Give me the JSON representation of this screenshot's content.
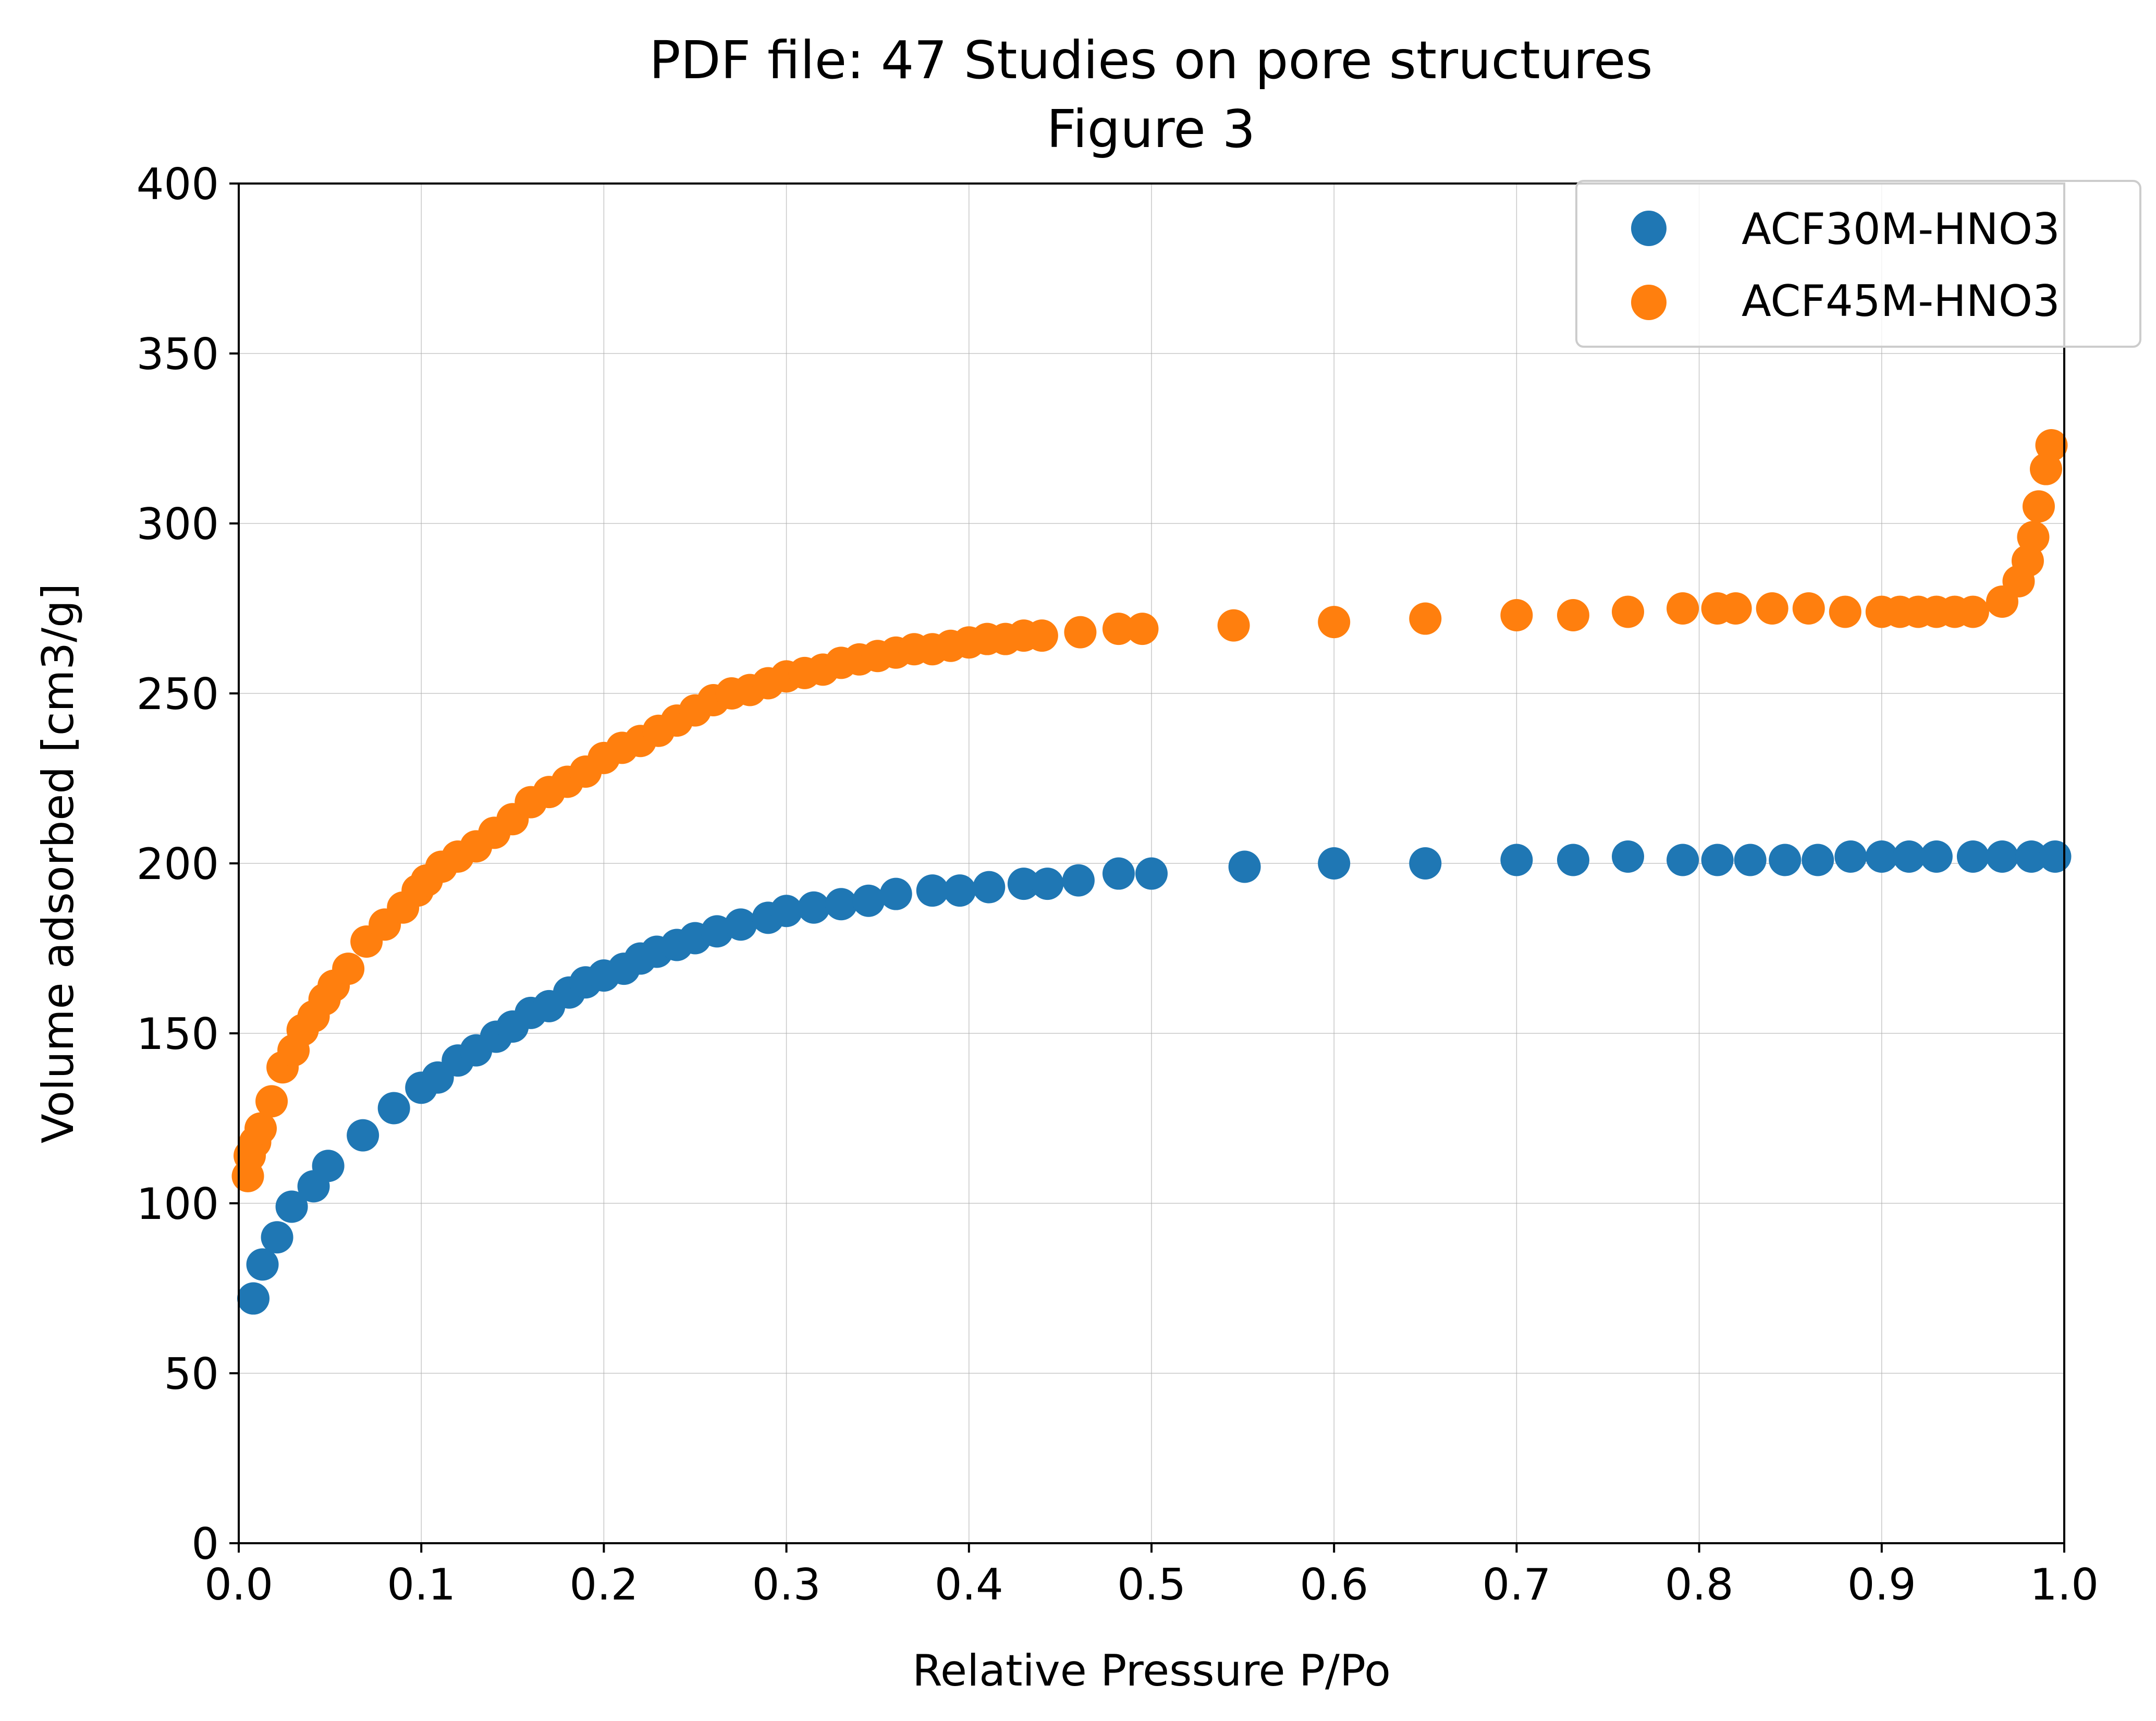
{
  "chart_data": {
    "type": "scatter",
    "title": "PDF file: 47 Studies on pore structures",
    "subtitle": "Figure 3",
    "xlabel": "Relative Pressure P/Po",
    "ylabel": "Volume adsorbed [cm3/g]",
    "xlim": [
      0.0,
      1.0
    ],
    "ylim": [
      0,
      400
    ],
    "xticks": [
      "0.0",
      "0.1",
      "0.2",
      "0.3",
      "0.4",
      "0.5",
      "0.6",
      "0.7",
      "0.8",
      "0.9",
      "1.0"
    ],
    "yticks": [
      "0",
      "50",
      "100",
      "150",
      "200",
      "250",
      "300",
      "350",
      "400"
    ],
    "grid": true,
    "legend_position": "top-right",
    "series": [
      {
        "name": "ACF30M-HNO3",
        "color": "#1f77b4",
        "points": [
          [
            0.008,
            72
          ],
          [
            0.013,
            82
          ],
          [
            0.021,
            90
          ],
          [
            0.029,
            99
          ],
          [
            0.041,
            105
          ],
          [
            0.049,
            111
          ],
          [
            0.068,
            120
          ],
          [
            0.085,
            128
          ],
          [
            0.1,
            134
          ],
          [
            0.109,
            137
          ],
          [
            0.12,
            142
          ],
          [
            0.13,
            145
          ],
          [
            0.141,
            149
          ],
          [
            0.15,
            152
          ],
          [
            0.16,
            156
          ],
          [
            0.17,
            158
          ],
          [
            0.181,
            162
          ],
          [
            0.19,
            165
          ],
          [
            0.2,
            167
          ],
          [
            0.211,
            169
          ],
          [
            0.22,
            172
          ],
          [
            0.229,
            174
          ],
          [
            0.24,
            176
          ],
          [
            0.25,
            178
          ],
          [
            0.262,
            180
          ],
          [
            0.275,
            182
          ],
          [
            0.29,
            184
          ],
          [
            0.3,
            186
          ],
          [
            0.315,
            187
          ],
          [
            0.33,
            188
          ],
          [
            0.345,
            189
          ],
          [
            0.36,
            191
          ],
          [
            0.38,
            192
          ],
          [
            0.395,
            192
          ],
          [
            0.411,
            193
          ],
          [
            0.43,
            194
          ],
          [
            0.443,
            194
          ],
          [
            0.46,
            195
          ],
          [
            0.482,
            197
          ],
          [
            0.5,
            197
          ],
          [
            0.551,
            199
          ],
          [
            0.6,
            200
          ],
          [
            0.65,
            200
          ],
          [
            0.7,
            201
          ],
          [
            0.731,
            201
          ],
          [
            0.761,
            202
          ],
          [
            0.791,
            201
          ],
          [
            0.81,
            201
          ],
          [
            0.828,
            201
          ],
          [
            0.847,
            201
          ],
          [
            0.865,
            201
          ],
          [
            0.883,
            202
          ],
          [
            0.9,
            202
          ],
          [
            0.915,
            202
          ],
          [
            0.93,
            202
          ],
          [
            0.95,
            202
          ],
          [
            0.966,
            202
          ],
          [
            0.982,
            202
          ],
          [
            0.995,
            202
          ]
        ]
      },
      {
        "name": "ACF45M-HNO3",
        "color": "#ff7f0e",
        "points": [
          [
            0.005,
            108
          ],
          [
            0.006,
            114
          ],
          [
            0.009,
            118
          ],
          [
            0.012,
            122
          ],
          [
            0.018,
            130
          ],
          [
            0.024,
            140
          ],
          [
            0.03,
            145
          ],
          [
            0.035,
            151
          ],
          [
            0.041,
            155
          ],
          [
            0.047,
            160
          ],
          [
            0.052,
            164
          ],
          [
            0.06,
            169
          ],
          [
            0.07,
            177
          ],
          [
            0.08,
            182
          ],
          [
            0.09,
            187
          ],
          [
            0.098,
            192
          ],
          [
            0.103,
            195
          ],
          [
            0.111,
            199
          ],
          [
            0.12,
            202
          ],
          [
            0.13,
            205
          ],
          [
            0.14,
            209
          ],
          [
            0.15,
            213
          ],
          [
            0.16,
            218
          ],
          [
            0.17,
            221
          ],
          [
            0.18,
            224
          ],
          [
            0.19,
            227
          ],
          [
            0.2,
            231
          ],
          [
            0.21,
            234
          ],
          [
            0.22,
            236
          ],
          [
            0.23,
            239
          ],
          [
            0.24,
            242
          ],
          [
            0.25,
            245
          ],
          [
            0.26,
            248
          ],
          [
            0.27,
            250
          ],
          [
            0.28,
            251
          ],
          [
            0.29,
            253
          ],
          [
            0.3,
            255
          ],
          [
            0.31,
            256
          ],
          [
            0.32,
            257
          ],
          [
            0.33,
            259
          ],
          [
            0.34,
            260
          ],
          [
            0.35,
            261
          ],
          [
            0.36,
            262
          ],
          [
            0.37,
            263
          ],
          [
            0.38,
            263
          ],
          [
            0.39,
            264
          ],
          [
            0.4,
            265
          ],
          [
            0.41,
            266
          ],
          [
            0.42,
            266
          ],
          [
            0.43,
            267
          ],
          [
            0.44,
            267
          ],
          [
            0.461,
            268
          ],
          [
            0.482,
            269
          ],
          [
            0.495,
            269
          ],
          [
            0.545,
            270
          ],
          [
            0.6,
            271
          ],
          [
            0.65,
            272
          ],
          [
            0.7,
            273
          ],
          [
            0.731,
            273
          ],
          [
            0.761,
            274
          ],
          [
            0.791,
            275
          ],
          [
            0.81,
            275
          ],
          [
            0.82,
            275
          ],
          [
            0.84,
            275
          ],
          [
            0.86,
            275
          ],
          [
            0.88,
            274
          ],
          [
            0.9,
            274
          ],
          [
            0.91,
            274
          ],
          [
            0.92,
            274
          ],
          [
            0.93,
            274
          ],
          [
            0.94,
            274
          ],
          [
            0.95,
            274
          ],
          [
            0.966,
            277
          ],
          [
            0.975,
            283
          ],
          [
            0.98,
            289
          ],
          [
            0.983,
            296
          ],
          [
            0.986,
            305
          ],
          [
            0.99,
            316
          ],
          [
            0.993,
            323
          ]
        ]
      }
    ]
  }
}
